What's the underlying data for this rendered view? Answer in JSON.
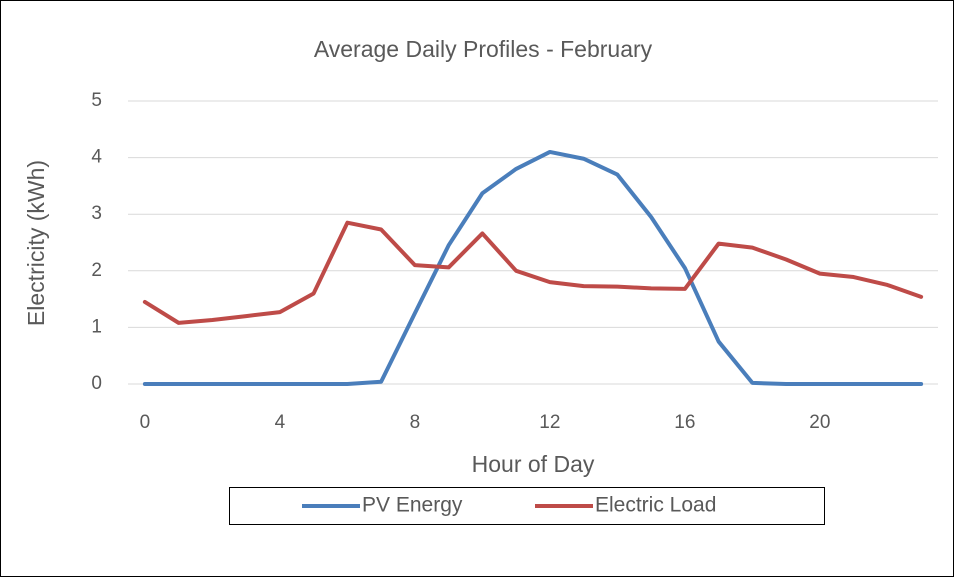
{
  "chart_data": {
    "type": "line",
    "title": "Average Daily Profiles - February",
    "x_label": "Hour of Day",
    "y_label": "Electricity (kWh)",
    "x": [
      0,
      1,
      2,
      3,
      4,
      5,
      6,
      7,
      8,
      9,
      10,
      11,
      12,
      13,
      14,
      15,
      16,
      17,
      18,
      19,
      20,
      21,
      22,
      23
    ],
    "series": [
      {
        "name": "PV Energy",
        "color": "#4a7ebb",
        "values": [
          0,
          0,
          0,
          0,
          0,
          0,
          0,
          0.04,
          1.25,
          2.45,
          3.37,
          3.8,
          4.1,
          3.98,
          3.7,
          2.95,
          2.05,
          0.75,
          0.02,
          0,
          0,
          0,
          0,
          0
        ]
      },
      {
        "name": "Electric Load",
        "color": "#be4b48",
        "values": [
          1.45,
          1.08,
          1.13,
          1.2,
          1.27,
          1.6,
          2.85,
          2.73,
          2.1,
          2.06,
          2.66,
          2.0,
          1.8,
          1.73,
          1.72,
          1.69,
          1.68,
          2.48,
          2.41,
          2.2,
          1.95,
          1.89,
          1.75,
          1.54
        ]
      }
    ],
    "xlim": [
      -0.5,
      23.5
    ],
    "xticks": [
      0,
      4,
      8,
      12,
      16,
      20
    ],
    "ylim": [
      0,
      5
    ],
    "yticks": [
      0,
      1,
      2,
      3,
      4,
      5
    ],
    "grid": true,
    "legend": "bottom"
  }
}
